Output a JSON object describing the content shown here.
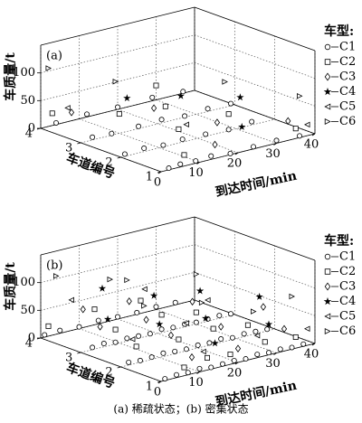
{
  "chart_data": [
    {
      "type": "scatter3d",
      "label": "(a)",
      "xlabel": "到达时间/min",
      "ylabel": "车道编号",
      "zlabel": "车质量/t",
      "xlim": [
        0,
        40
      ],
      "xticks": [
        0,
        10,
        20,
        30,
        40
      ],
      "ylim": [
        1,
        4
      ],
      "yticks": [
        1,
        2,
        3,
        4
      ],
      "zlim": [
        0,
        150
      ],
      "zticks": [
        0,
        50,
        100
      ],
      "grid": true,
      "legend_title": "车型:",
      "series": [
        {
          "name": "C1",
          "marker": "o",
          "color": "#000",
          "x": [
            2,
            5,
            9,
            13,
            18,
            24,
            30,
            36,
            1,
            6,
            11,
            16,
            22,
            28,
            34,
            3,
            8,
            15,
            21,
            27,
            33,
            39,
            4,
            12,
            20,
            29,
            37
          ],
          "y": [
            1,
            1,
            1,
            1,
            1,
            1,
            1,
            1,
            2,
            2,
            2,
            2,
            2,
            2,
            2,
            3,
            3,
            3,
            3,
            3,
            3,
            3,
            4,
            4,
            4,
            4,
            4
          ],
          "z": [
            3,
            5,
            4,
            6,
            2,
            4,
            5,
            3,
            4,
            6,
            3,
            5,
            4,
            2,
            6,
            5,
            3,
            4,
            6,
            2,
            5,
            4,
            3,
            5,
            4,
            6,
            3
          ]
        },
        {
          "name": "C2",
          "marker": "s",
          "color": "#000",
          "x": [
            6,
            15,
            28,
            35,
            10,
            22,
            3,
            30
          ],
          "y": [
            1,
            2,
            2,
            1,
            3,
            3,
            4,
            4
          ],
          "z": [
            20,
            25,
            30,
            18,
            35,
            28,
            22,
            26
          ]
        },
        {
          "name": "C3",
          "marker": "d",
          "color": "#000",
          "x": [
            14,
            25,
            33,
            19,
            8
          ],
          "y": [
            1,
            2,
            1,
            3,
            4
          ],
          "z": [
            25,
            20,
            35,
            30,
            15
          ]
        },
        {
          "name": "C4",
          "marker": "*",
          "color": "#000",
          "x": [
            21,
            31,
            12,
            26
          ],
          "y": [
            1,
            2,
            3,
            3
          ],
          "z": [
            45,
            55,
            60,
            40
          ]
        },
        {
          "name": "C5",
          "marker": "<",
          "color": "#000",
          "x": [
            17,
            7,
            38
          ],
          "y": [
            2,
            4,
            1
          ],
          "z": [
            30,
            25,
            20
          ]
        },
        {
          "name": "C6",
          "marker": ">",
          "color": "#000",
          "x": [
            27,
            9,
            36,
            2
          ],
          "y": [
            2,
            3,
            1,
            4
          ],
          "z": [
            90,
            95,
            75,
            105
          ]
        }
      ]
    },
    {
      "type": "scatter3d",
      "label": "(b)",
      "xlabel": "到达时间/min",
      "ylabel": "车道编号",
      "zlabel": "车质量/t",
      "xlim": [
        0,
        40
      ],
      "xticks": [
        0,
        10,
        20,
        30,
        40
      ],
      "ylim": [
        1,
        4
      ],
      "yticks": [
        1,
        2,
        3,
        4
      ],
      "zlim": [
        0,
        150
      ],
      "zticks": [
        0,
        50,
        100
      ],
      "grid": true,
      "legend_title": "车型:",
      "series": [
        {
          "name": "C1",
          "marker": "o",
          "color": "#000",
          "x": [
            1,
            4,
            7,
            10,
            13,
            16,
            19,
            22,
            25,
            28,
            31,
            34,
            37,
            2,
            5,
            8,
            11,
            14,
            17,
            20,
            23,
            26,
            29,
            32,
            35,
            38,
            3,
            6,
            9,
            12,
            15,
            18,
            21,
            24,
            27,
            30,
            33,
            36,
            39,
            1,
            5,
            10,
            15,
            20,
            25,
            30,
            35
          ],
          "y": [
            1,
            1,
            1,
            1,
            1,
            1,
            1,
            1,
            1,
            1,
            1,
            1,
            1,
            2,
            2,
            2,
            2,
            2,
            2,
            2,
            2,
            2,
            2,
            2,
            2,
            2,
            3,
            3,
            3,
            3,
            3,
            3,
            3,
            3,
            3,
            3,
            3,
            3,
            3,
            4,
            4,
            4,
            4,
            4,
            4,
            4,
            4
          ],
          "z": [
            3,
            5,
            4,
            6,
            3,
            4,
            5,
            3,
            6,
            4,
            5,
            3,
            4,
            5,
            3,
            4,
            6,
            4,
            3,
            5,
            4,
            6,
            3,
            5,
            4,
            3,
            4,
            6,
            3,
            5,
            4,
            3,
            6,
            4,
            5,
            3,
            4,
            5,
            3,
            4,
            5,
            3,
            6,
            4,
            3,
            5,
            4
          ]
        },
        {
          "name": "C2",
          "marker": "s",
          "color": "#000",
          "x": [
            6,
            12,
            18,
            27,
            35,
            4,
            15,
            24,
            33,
            9,
            21,
            30,
            2,
            14,
            26
          ],
          "y": [
            1,
            1,
            1,
            1,
            1,
            2,
            2,
            2,
            2,
            3,
            3,
            3,
            4,
            4,
            4
          ],
          "z": [
            15,
            22,
            18,
            25,
            20,
            30,
            24,
            28,
            19,
            26,
            32,
            21,
            18,
            28,
            23
          ]
        },
        {
          "name": "C3",
          "marker": "d",
          "color": "#000",
          "x": [
            8,
            20,
            32,
            13,
            26,
            37,
            5,
            17,
            29,
            11,
            23
          ],
          "y": [
            1,
            1,
            1,
            2,
            2,
            2,
            3,
            3,
            3,
            4,
            4
          ],
          "z": [
            30,
            25,
            40,
            35,
            28,
            45,
            38,
            30,
            42,
            33,
            27
          ]
        },
        {
          "name": "C4",
          "marker": "*",
          "color": "#000",
          "x": [
            14,
            28,
            10,
            22,
            36,
            7,
            19,
            31,
            16
          ],
          "y": [
            1,
            1,
            2,
            2,
            2,
            3,
            3,
            3,
            4
          ],
          "z": [
            45,
            55,
            60,
            50,
            65,
            48,
            70,
            58,
            62
          ]
        },
        {
          "name": "C5",
          "marker": "<",
          "color": "#000",
          "x": [
            11,
            25,
            38,
            3,
            17,
            33,
            8,
            27
          ],
          "y": [
            1,
            1,
            1,
            2,
            2,
            3,
            4,
            4
          ],
          "z": [
            35,
            40,
            30,
            45,
            50,
            38,
            55,
            42
          ]
        },
        {
          "name": "C6",
          "marker": ">",
          "color": "#000",
          "x": [
            24,
            34,
            6,
            21,
            12,
            30,
            4,
            18
          ],
          "y": [
            1,
            1,
            2,
            2,
            3,
            3,
            4,
            4
          ],
          "z": [
            85,
            95,
            100,
            80,
            110,
            90,
            105,
            75
          ]
        }
      ]
    }
  ],
  "caption": "(a) 稀疏状态；(b) 密集状态"
}
